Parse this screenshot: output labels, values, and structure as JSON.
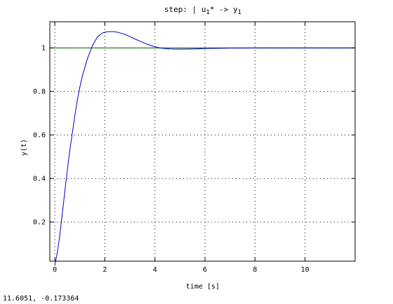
{
  "window": {
    "cursor_readout": "11.6051, -0.173364"
  },
  "chart_data": {
    "type": "line",
    "title": "step: | u₁* -> y₁",
    "title_parts": {
      "prefix": "step: | u",
      "sub1": "1",
      "middle": "* -> y",
      "sub2": "1"
    },
    "xlabel": "time [s]",
    "ylabel": "y(t)",
    "xlim": [
      -0.2,
      12.0
    ],
    "ylim": [
      0.02,
      1.12
    ],
    "xticks": [
      0,
      2,
      4,
      6,
      8,
      10
    ],
    "xtick_labels": [
      "0",
      "2",
      "4",
      "6",
      "8",
      "10"
    ],
    "yticks": [
      0.2,
      0.4,
      0.6,
      0.8,
      1
    ],
    "ytick_labels": [
      "0.2",
      "0.4",
      "0.6",
      "0.8",
      "1"
    ],
    "grid": true,
    "grid_style": "dotted",
    "colors": {
      "response": "#0000cc",
      "reference": "#006400"
    },
    "series": [
      {
        "type": "line",
        "x": [
          0,
          0.1,
          0.2,
          0.3,
          0.4,
          0.5,
          0.6,
          0.7,
          0.8,
          0.9,
          1.0,
          1.1,
          1.2,
          1.3,
          1.4,
          1.5,
          1.6,
          1.7,
          1.8,
          1.9,
          2.0,
          2.1,
          2.2,
          2.3,
          2.4,
          2.5,
          2.6,
          2.8,
          3.0,
          3.2,
          3.4,
          3.6,
          3.8,
          4.0,
          4.2,
          4.4,
          4.6,
          4.8,
          5.0,
          5.2,
          5.5,
          5.8,
          6.0,
          6.5,
          7.0,
          7.5,
          8.0,
          9.0,
          10.0,
          11.0,
          12.0
        ],
        "y": [
          0.0,
          0.06,
          0.14,
          0.24,
          0.34,
          0.44,
          0.53,
          0.61,
          0.69,
          0.76,
          0.82,
          0.87,
          0.91,
          0.95,
          0.98,
          1.01,
          1.03,
          1.05,
          1.06,
          1.068,
          1.072,
          1.074,
          1.075,
          1.075,
          1.074,
          1.072,
          1.069,
          1.062,
          1.052,
          1.041,
          1.031,
          1.021,
          1.012,
          1.005,
          1.0,
          0.997,
          0.995,
          0.994,
          0.994,
          0.994,
          0.995,
          0.996,
          0.997,
          0.998,
          0.999,
          0.999,
          1.0,
          1.0,
          1.0,
          1.0,
          1.0
        ]
      },
      {
        "type": "line",
        "x": [
          -0.2,
          12.0
        ],
        "y": [
          1.0,
          1.0
        ]
      }
    ]
  }
}
